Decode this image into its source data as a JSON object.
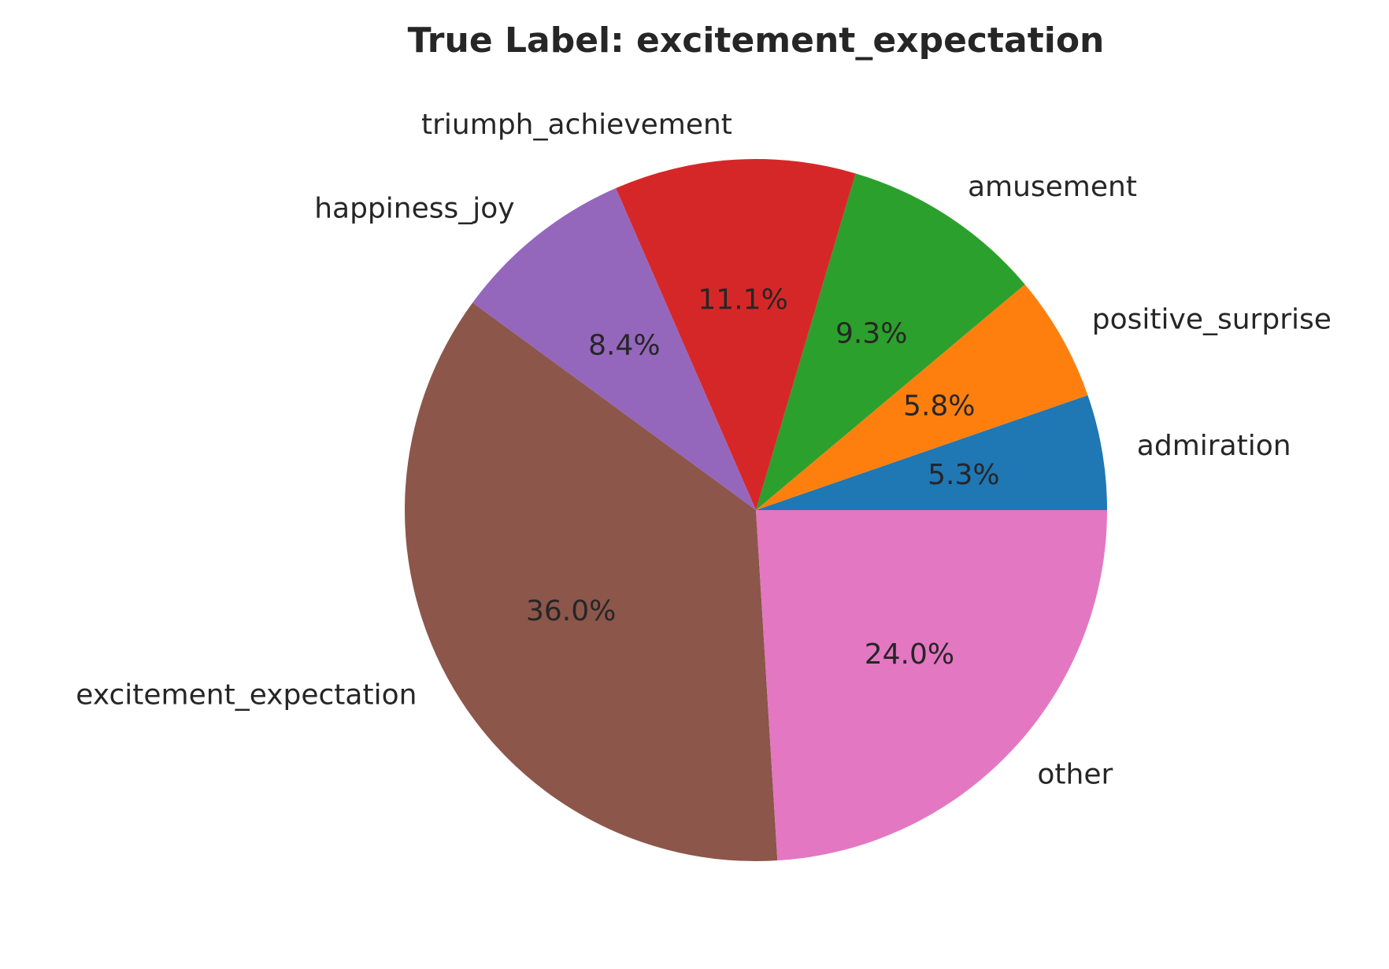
{
  "chart_data": {
    "type": "pie",
    "title": "True Label: excitement_expectation",
    "start_angle_deg": 0,
    "direction": "counterclockwise",
    "slices": [
      {
        "label": "admiration",
        "value": 5.3,
        "pct_label": "5.3%",
        "color": "#1f77b4"
      },
      {
        "label": "positive_surprise",
        "value": 5.8,
        "pct_label": "5.8%",
        "color": "#ff7f0e"
      },
      {
        "label": "amusement",
        "value": 9.3,
        "pct_label": "9.3%",
        "color": "#2ca02c"
      },
      {
        "label": "triumph_achievement",
        "value": 11.1,
        "pct_label": "11.1%",
        "color": "#d62728"
      },
      {
        "label": "happiness_joy",
        "value": 8.4,
        "pct_label": "8.4%",
        "color": "#9467bd"
      },
      {
        "label": "excitement_expectation",
        "value": 36.0,
        "pct_label": "36.0%",
        "color": "#8c564b"
      },
      {
        "label": "other",
        "value": 24.0,
        "pct_label": "24.0%",
        "color": "#e377c2"
      }
    ]
  }
}
